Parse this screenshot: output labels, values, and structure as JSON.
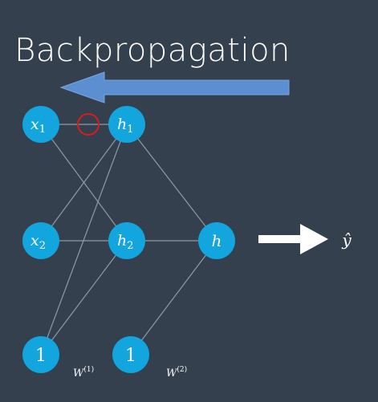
{
  "title": "Backpropagation",
  "colors": {
    "background": "#34404d",
    "node_fill": "#13a5de",
    "edge": "#8f9aa8",
    "arrow_back": "#5b8fd2",
    "arrow_out": "#ffffff",
    "highlight": "#e0191b"
  },
  "nodes": {
    "x1": {
      "base": "x",
      "sub": "1"
    },
    "x2": {
      "base": "x",
      "sub": "2"
    },
    "bias_input": "1",
    "h1": {
      "base": "h",
      "sub": "1"
    },
    "h2": {
      "base": "h",
      "sub": "2"
    },
    "bias_hidden": "1",
    "h": "h"
  },
  "weights": {
    "w1": {
      "base": "W",
      "sup": "(1)"
    },
    "w2": {
      "base": "W",
      "sup": "(2)"
    }
  },
  "output": "ŷ"
}
